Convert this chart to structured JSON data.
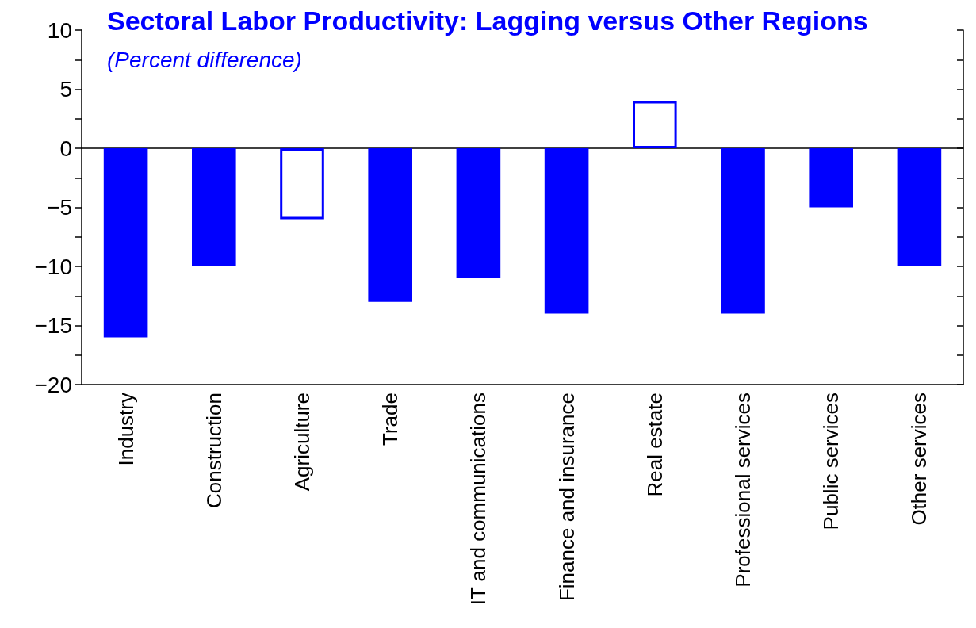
{
  "chart_data": {
    "type": "bar",
    "title": "Sectoral Labor Productivity: Lagging versus Other Regions",
    "subtitle": "(Percent difference)",
    "categories": [
      "Industry",
      "Construction",
      "Agriculture",
      "Trade",
      "IT and communications",
      "Finance and insurance",
      "Real estate",
      "Professional services",
      "Public services",
      "Other services"
    ],
    "values": [
      -16,
      -10,
      -6,
      -13,
      -11,
      -14,
      4,
      -14,
      -5,
      -10
    ],
    "color": "#0000ff",
    "colors": [
      "#0000ff",
      "#0000ff",
      "#ffffff",
      "#0000ff",
      "#0000ff",
      "#0000ff",
      "#ffffff",
      "#0000ff",
      "#0000ff",
      "#0000ff"
    ],
    "ylim": [
      -20,
      10
    ],
    "yticks": [
      -20,
      {
        "value": -17.5,
        "label": null
      },
      -15,
      {
        "value": -12.5,
        "label": null
      },
      -10,
      {
        "value": -7.5,
        "label": null
      },
      -5,
      {
        "value": -2.5,
        "label": null
      },
      0,
      {
        "value": 2.5,
        "label": null
      },
      5,
      {
        "value": 7.5,
        "label": null
      },
      10
    ]
  }
}
